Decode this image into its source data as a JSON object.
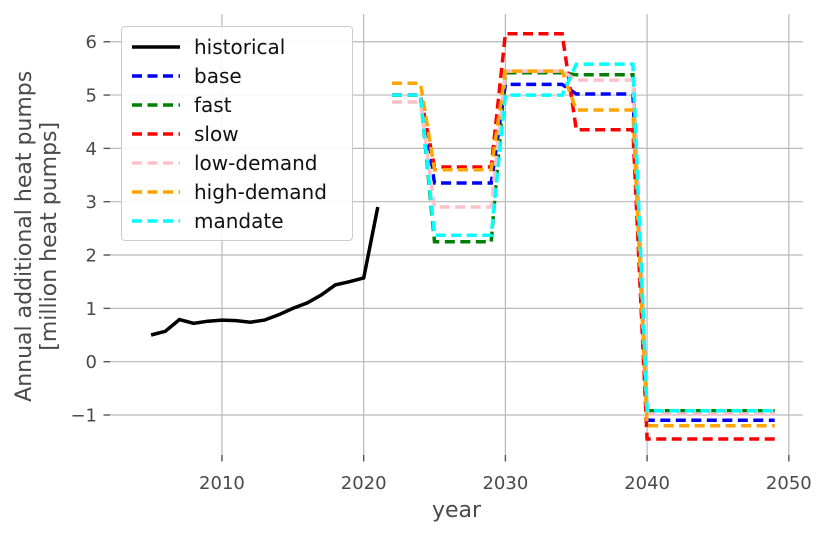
{
  "chart_data": {
    "type": "line",
    "title": "",
    "xlabel": "year",
    "ylabel_line1": "Annual additional heat pumps",
    "ylabel_line2": "[million heat pumps]",
    "xlim": [
      2002.1,
      2051.0
    ],
    "ylim": [
      -1.75,
      6.52
    ],
    "x_tick_values": [
      2010,
      2020,
      2030,
      2040,
      2050
    ],
    "x_tick_labels": [
      "2010",
      "2020",
      "2030",
      "2040",
      "2050"
    ],
    "y_tick_values": [
      -1,
      0,
      1,
      2,
      3,
      4,
      5,
      6
    ],
    "y_tick_labels": [
      "−1",
      "0",
      "1",
      "2",
      "3",
      "4",
      "5",
      "6"
    ],
    "grid": true,
    "grid_color": "#b9b9b9",
    "axis_text_color": "#4a4a4a",
    "tick_mark_color": "#555555",
    "background_color": "#ffffff",
    "legend_position": "upper left",
    "series": [
      {
        "name": "historical",
        "color": "#000000",
        "dash": "solid",
        "points": [
          [
            2005,
            0.5
          ],
          [
            2006,
            0.57
          ],
          [
            2007,
            0.79
          ],
          [
            2008,
            0.72
          ],
          [
            2009,
            0.76
          ],
          [
            2010,
            0.78
          ],
          [
            2011,
            0.77
          ],
          [
            2012,
            0.74
          ],
          [
            2013,
            0.78
          ],
          [
            2014,
            0.88
          ],
          [
            2015,
            1.0
          ],
          [
            2016,
            1.1
          ],
          [
            2017,
            1.25
          ],
          [
            2018,
            1.44
          ],
          [
            2019,
            1.5
          ],
          [
            2020,
            1.57
          ],
          [
            2021,
            2.9
          ]
        ]
      },
      {
        "name": "base",
        "color": "#0000ff",
        "dash": "dashed",
        "points": [
          [
            2022,
            5.0
          ],
          [
            2024,
            5.0
          ],
          [
            2025,
            3.35
          ],
          [
            2029,
            3.35
          ],
          [
            2030,
            5.2
          ],
          [
            2034,
            5.2
          ],
          [
            2035,
            5.02
          ],
          [
            2039,
            5.02
          ],
          [
            2040,
            -1.1
          ],
          [
            2049,
            -1.1
          ]
        ]
      },
      {
        "name": "fast",
        "color": "#008000",
        "dash": "dashed",
        "points": [
          [
            2022,
            5.0
          ],
          [
            2024,
            5.0
          ],
          [
            2025,
            2.25
          ],
          [
            2029,
            2.25
          ],
          [
            2030,
            5.42
          ],
          [
            2034,
            5.42
          ],
          [
            2035,
            5.38
          ],
          [
            2039,
            5.38
          ],
          [
            2040,
            -0.92
          ],
          [
            2049,
            -0.92
          ]
        ]
      },
      {
        "name": "slow",
        "color": "#ff0000",
        "dash": "dashed",
        "points": [
          [
            2022,
            5.0
          ],
          [
            2024,
            5.0
          ],
          [
            2025,
            3.65
          ],
          [
            2029,
            3.65
          ],
          [
            2030,
            6.15
          ],
          [
            2034,
            6.15
          ],
          [
            2035,
            4.35
          ],
          [
            2039,
            4.35
          ],
          [
            2040,
            -1.45
          ],
          [
            2049,
            -1.45
          ]
        ]
      },
      {
        "name": "low-demand",
        "color": "#ffc0cb",
        "dash": "dashed",
        "points": [
          [
            2022,
            4.87
          ],
          [
            2024,
            4.87
          ],
          [
            2025,
            2.9
          ],
          [
            2029,
            2.9
          ],
          [
            2030,
            5.45
          ],
          [
            2034,
            5.45
          ],
          [
            2035,
            5.28
          ],
          [
            2039,
            5.28
          ],
          [
            2040,
            -0.98
          ],
          [
            2049,
            -0.98
          ]
        ]
      },
      {
        "name": "high-demand",
        "color": "#ffa500",
        "dash": "dashed",
        "points": [
          [
            2022,
            5.22
          ],
          [
            2024,
            5.22
          ],
          [
            2025,
            3.6
          ],
          [
            2029,
            3.6
          ],
          [
            2030,
            5.45
          ],
          [
            2034,
            5.45
          ],
          [
            2035,
            4.72
          ],
          [
            2039,
            4.72
          ],
          [
            2040,
            -1.2
          ],
          [
            2049,
            -1.2
          ]
        ]
      },
      {
        "name": "mandate",
        "color": "#00ffff",
        "dash": "dashed",
        "points": [
          [
            2022,
            5.0
          ],
          [
            2024,
            5.0
          ],
          [
            2025,
            2.37
          ],
          [
            2029,
            2.37
          ],
          [
            2030,
            5.0
          ],
          [
            2034,
            5.0
          ],
          [
            2035,
            5.58
          ],
          [
            2039,
            5.58
          ],
          [
            2040,
            -0.92
          ],
          [
            2049,
            -0.92
          ]
        ]
      }
    ],
    "legend_entries": [
      "historical",
      "base",
      "fast",
      "slow",
      "low-demand",
      "high-demand",
      "mandate"
    ]
  }
}
